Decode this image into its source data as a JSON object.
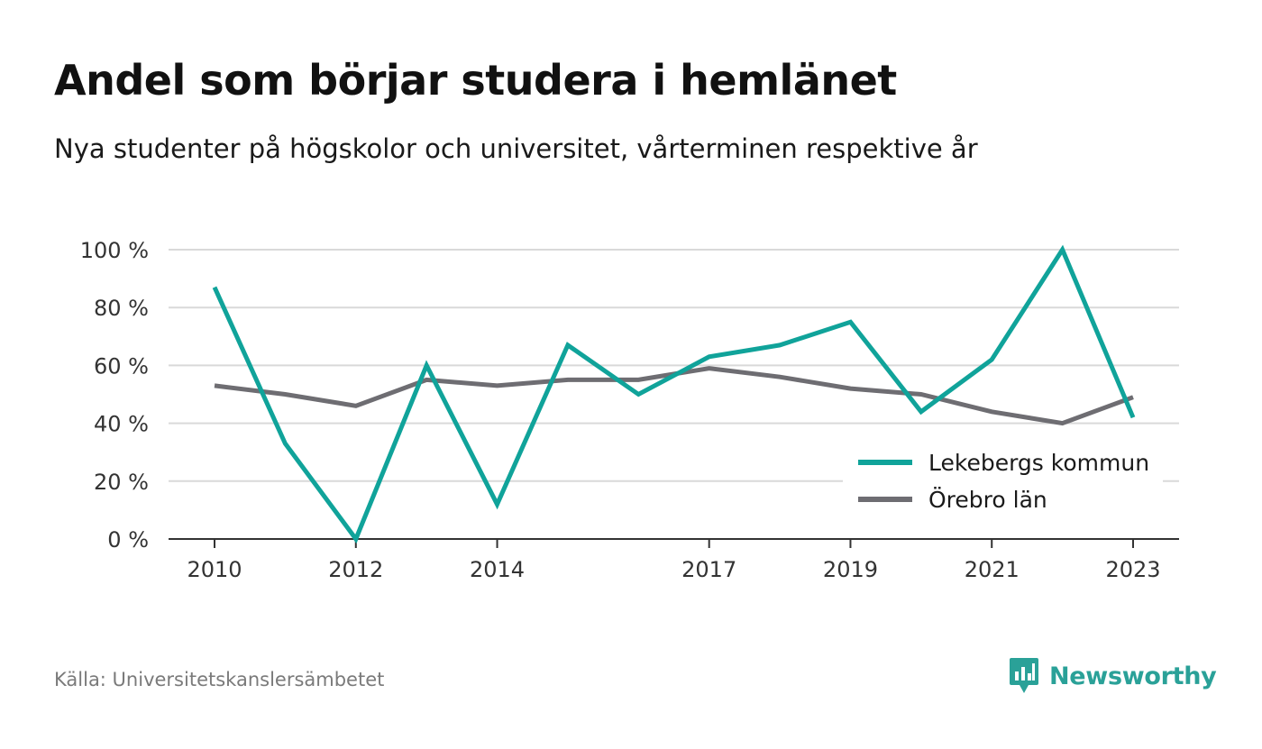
{
  "title": "Andel som börjar studera i hemlänet",
  "subtitle": "Nya studenter på högskolor och universitet, vårterminen respektive år",
  "source": "Källa: Universitetskanslersämbetet",
  "brand": {
    "name": "Newsworthy",
    "icon": "newsworthy-logo-icon",
    "color": "#2aa198"
  },
  "chart_data": {
    "type": "line",
    "x": [
      2010,
      2011,
      2012,
      2013,
      2014,
      2015,
      2016,
      2017,
      2018,
      2019,
      2020,
      2021,
      2022,
      2023
    ],
    "x_ticks": [
      "2010",
      "2012",
      "2014",
      "2017",
      "2019",
      "2021",
      "2023"
    ],
    "y_ticks": [
      0,
      20,
      40,
      60,
      80,
      100
    ],
    "y_tick_labels": [
      "0 %",
      "20 %",
      "40 %",
      "60 %",
      "80 %",
      "100 %"
    ],
    "ylim": [
      0,
      100
    ],
    "xlim": [
      2010,
      2023
    ],
    "grid": true,
    "legend_position": "bottom-right",
    "series": [
      {
        "name": "Lekebergs kommun",
        "color": "#10a39a",
        "values": [
          87,
          33,
          0,
          60,
          12,
          67,
          50,
          63,
          67,
          75,
          44,
          62,
          100,
          42
        ]
      },
      {
        "name": "Örebro län",
        "color": "#6e6d72",
        "values": [
          53,
          50,
          46,
          55,
          53,
          55,
          55,
          59,
          56,
          52,
          50,
          44,
          40,
          49
        ]
      }
    ]
  }
}
